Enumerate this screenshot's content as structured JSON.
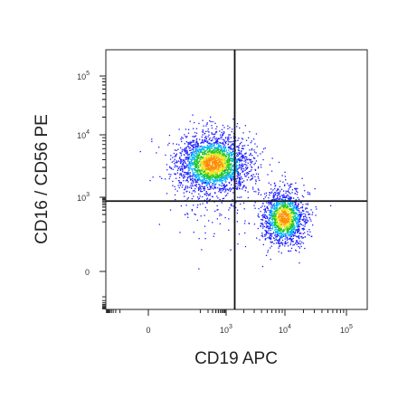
{
  "chart_data": {
    "type": "scatter",
    "subtype": "flow-cytometry-density-dot-plot",
    "xlabel": "CD19 APC",
    "ylabel": "CD16 / CD56 PE",
    "x_scale": "biexponential",
    "y_scale": "biexponential",
    "xlim": [
      -1000,
      100000
    ],
    "ylim": [
      -1000,
      200000
    ],
    "x_ticks": [
      {
        "value": 0,
        "base": "0",
        "exp": ""
      },
      {
        "value": 1000,
        "base": "10",
        "exp": "3"
      },
      {
        "value": 10000,
        "base": "10",
        "exp": "4"
      },
      {
        "value": 100000,
        "base": "10",
        "exp": "5"
      }
    ],
    "y_ticks": [
      {
        "value": 0,
        "base": "0",
        "exp": ""
      },
      {
        "value": 1000,
        "base": "10",
        "exp": "3"
      },
      {
        "value": 10000,
        "base": "10",
        "exp": "4"
      },
      {
        "value": 100000,
        "base": "10",
        "exp": "5"
      }
    ],
    "quadrant_gates": {
      "x": 1400,
      "y": 700
    },
    "populations": [
      {
        "center_x": 300,
        "center_y": 3500,
        "spread": "wide",
        "density": "high"
      },
      {
        "center_x": 9500,
        "center_y": 150,
        "spread": "compact",
        "density": "high"
      },
      {
        "center_x": 250,
        "center_y": 220,
        "spread": "sparse",
        "density": "low"
      }
    ],
    "colormap": [
      "#1a1aff",
      "#00b4ff",
      "#1ec81e",
      "#f0e61e",
      "#ff8c00"
    ],
    "grid": false,
    "legend": "none"
  }
}
